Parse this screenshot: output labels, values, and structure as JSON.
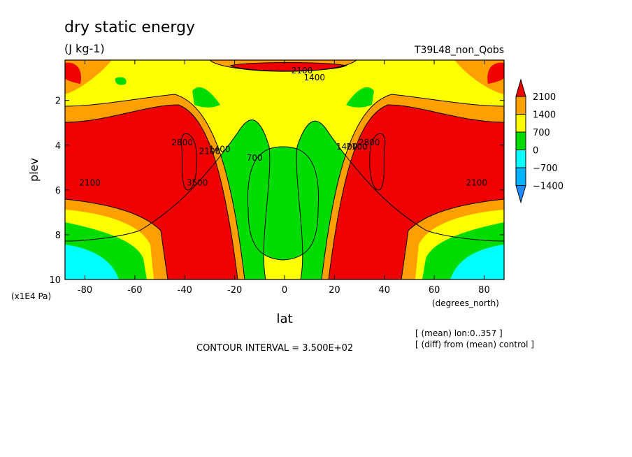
{
  "chart_data": {
    "type": "heatmap",
    "title": "dry static energy",
    "subtitle": "(J kg-1)",
    "experiment": "T39L48_non_Qobs",
    "xlabel": "lat",
    "xunits": "(degrees_north)",
    "ylabel": "plev",
    "yunits": "(x1E4 Pa)",
    "xlim": [
      -88,
      88
    ],
    "ylim": [
      10,
      0.2
    ],
    "x_ticks": [
      -80,
      -60,
      -40,
      -20,
      0,
      20,
      40,
      60,
      80
    ],
    "x_tick_labels": [
      "-80",
      "-60",
      "-40",
      "-20",
      "0",
      "20",
      "40",
      "60",
      "80"
    ],
    "y_ticks": [
      2,
      4,
      6,
      8,
      10
    ],
    "y_tick_labels": [
      "2",
      "4",
      "6",
      "8",
      "10"
    ],
    "contour_interval_text": "CONTOUR INTERVAL = 3.500E+02",
    "notes": [
      "[ (mean) lon:0..357 ]",
      "[ (diff) from (mean) control ]"
    ],
    "colorbar": {
      "levels": [
        2100,
        1400,
        700,
        0,
        -700,
        -1400
      ],
      "labels": [
        "2100",
        "1400",
        "700",
        "0",
        "−700",
        "−1400"
      ],
      "colors": {
        "lt_neg1400": "#1e8cff",
        "neg1400_neg700": "#00b4ff",
        "neg700_0": "#00ffff",
        "0_700": "#00dc00",
        "700_1400": "#ffff00",
        "1400_2100": "#ffa000",
        "gt_2100": "#f00000"
      }
    },
    "contour_labels": [
      {
        "text": "2100",
        "x": -78,
        "y": 5.8
      },
      {
        "text": "2800",
        "x": -41,
        "y": 4.0
      },
      {
        "text": "3500",
        "x": -35,
        "y": 5.8
      },
      {
        "text": "2100",
        "x": -30,
        "y": 4.4
      },
      {
        "text": "1400",
        "x": -26,
        "y": 4.3
      },
      {
        "text": "700",
        "x": -12,
        "y": 4.7
      },
      {
        "text": "2100",
        "x": 7,
        "y": 0.8
      },
      {
        "text": "1400",
        "x": 12,
        "y": 1.1
      },
      {
        "text": "1400",
        "x": 25,
        "y": 4.2
      },
      {
        "text": "2100",
        "x": 29,
        "y": 4.2
      },
      {
        "text": "2800",
        "x": 34,
        "y": 4.0
      },
      {
        "text": "2100",
        "x": 77,
        "y": 5.8
      }
    ]
  }
}
